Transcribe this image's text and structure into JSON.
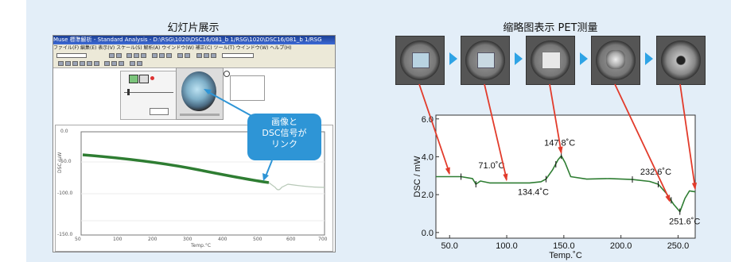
{
  "left_panel": {
    "title": "幻灯片展示",
    "window_title": "Muse 標準解析 - Standard Analysis - D:\\RSG\\1020\\DSC16/081_b 1/RSG\\1020\\DSC16/081_b 1/RSG",
    "menu": "ファイル(F)  編集(E)  表示(V)  スケール(S)  解析(A)  ウインドウ(W)  補正(C)  ツール(T)  ウインドウ(W)  ヘルプ(H)",
    "callout_lines": [
      "画像と",
      "DSC信号が",
      "リンク"
    ],
    "plot_y_ticks": [
      "0.0",
      "-50.0",
      "-100.0",
      "-150.0"
    ],
    "plot_x_ticks": [
      "50",
      "100",
      "200",
      "300",
      "400",
      "500",
      "600",
      "700"
    ],
    "plot_xlabel": "Temp.°C",
    "plot_ylabel": "DSC /μW"
  },
  "right_panel": {
    "title": "缩略图表示  PET测量",
    "frame_count": 5
  },
  "chart_data": {
    "type": "line",
    "xlabel": "Temp.˚C",
    "ylabel": "DSC / mW",
    "xlim": [
      38,
      265
    ],
    "ylim": [
      -0.3,
      6.2
    ],
    "x_ticks": [
      "50.0",
      "100.0",
      "150.0",
      "200.0",
      "250.0"
    ],
    "y_ticks": [
      "0.0",
      "2.0",
      "4.0",
      "6.0"
    ],
    "series": [
      {
        "x": [
          38,
          50,
          60,
          70,
          73,
          77,
          85,
          100,
          120,
          130,
          134.4,
          140,
          145,
          147.8,
          151,
          156,
          170,
          190,
          210,
          225,
          232.6,
          240,
          246,
          251.6,
          256,
          260,
          265
        ],
        "y": [
          2.95,
          2.95,
          2.95,
          2.85,
          2.55,
          2.72,
          2.62,
          2.62,
          2.62,
          2.68,
          2.82,
          3.3,
          3.85,
          4.05,
          3.7,
          2.95,
          2.82,
          2.85,
          2.8,
          2.7,
          2.55,
          2.05,
          1.5,
          1.1,
          1.8,
          2.2,
          2.15
        ],
        "color": "#2e7d32"
      }
    ],
    "annotations": [
      {
        "text": "71.0˚C",
        "x": 71.0,
        "y": 2.88
      },
      {
        "text": "147.8˚C",
        "x": 147.8,
        "y": 4.05
      },
      {
        "text": "134.4˚C",
        "x": 134.4,
        "y": 2.82
      },
      {
        "text": "232.6˚C",
        "x": 232.6,
        "y": 2.55
      },
      {
        "text": "251.6˚C",
        "x": 251.6,
        "y": 1.1
      }
    ],
    "frame_links": [
      50,
      100,
      147.8,
      243,
      265
    ]
  }
}
